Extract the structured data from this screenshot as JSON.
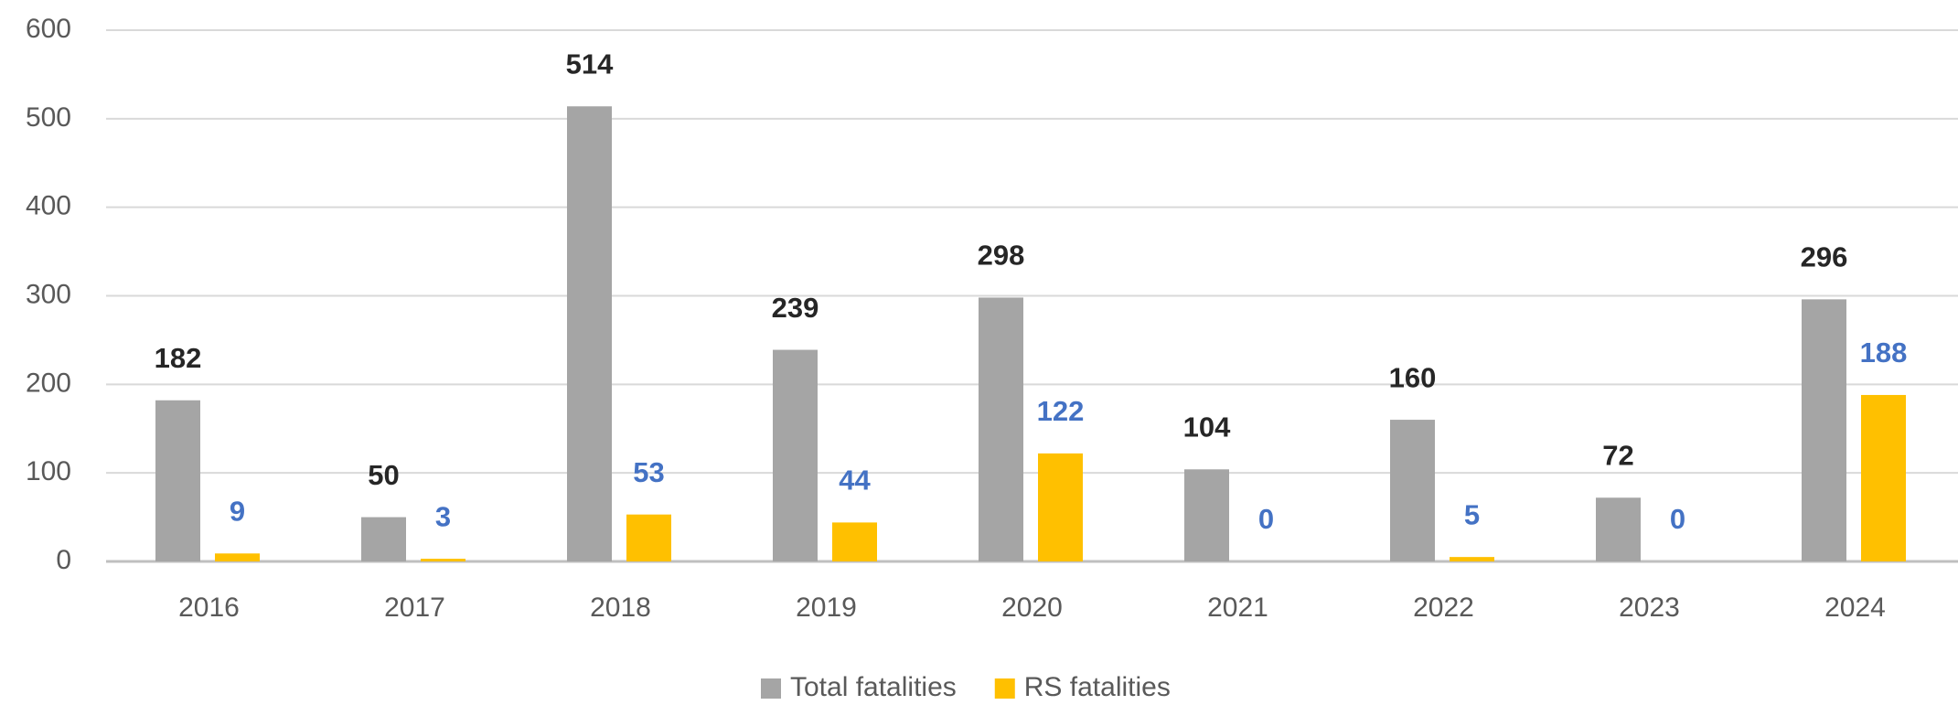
{
  "chart_data": {
    "type": "bar",
    "categories": [
      "2016",
      "2017",
      "2018",
      "2019",
      "2020",
      "2021",
      "2022",
      "2023",
      "2024"
    ],
    "series": [
      {
        "name": "Total fatalities",
        "color": "#a5a5a5",
        "label_color": "#262626",
        "values": [
          182,
          50,
          514,
          239,
          298,
          104,
          160,
          72,
          296
        ]
      },
      {
        "name": "RS fatalities",
        "color": "#ffc000",
        "label_color": "#4472c4",
        "values": [
          9,
          3,
          53,
          44,
          122,
          0,
          5,
          0,
          188
        ]
      }
    ],
    "ylim": [
      0,
      600
    ],
    "yticks": [
      0,
      100,
      200,
      300,
      400,
      500,
      600
    ],
    "grid": true,
    "legend": "bottom"
  }
}
